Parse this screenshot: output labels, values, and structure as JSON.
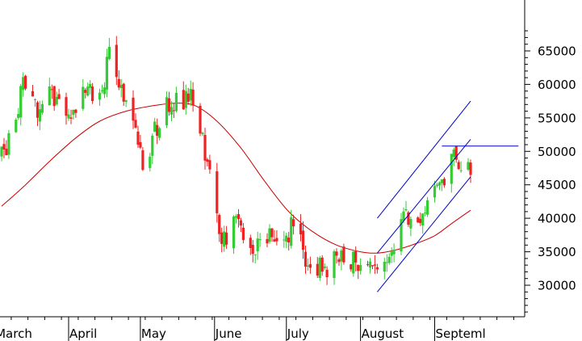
{
  "chart_data": {
    "type": "candlestick",
    "x_axis": {
      "type": "date",
      "range": [
        "2008-03-04",
        "2008-09-16"
      ],
      "tick_labels": [
        {
          "label": "March",
          "date": "2008-03-01"
        },
        {
          "label": "April",
          "date": "2008-04-01"
        },
        {
          "label": "May",
          "date": "2008-05-01"
        },
        {
          "label": "June",
          "date": "2008-06-01"
        },
        {
          "label": "July",
          "date": "2008-07-01"
        },
        {
          "label": "August",
          "date": "2008-08-01"
        },
        {
          "label": "Septeml",
          "date": "2008-09-01"
        }
      ]
    },
    "y_axis": {
      "position": "right",
      "range": [
        26000,
        68000
      ],
      "ticks": [
        30000,
        35000,
        40000,
        45000,
        50000,
        55000,
        60000,
        65000
      ]
    },
    "colors": {
      "up": "#33cc33",
      "down": "#ee2222",
      "moving_average": "#cc0000",
      "trend_lines": "#0000cc",
      "axis": "#000000"
    },
    "price_path": [
      {
        "date": "2008-03-04",
        "value": 49000
      },
      {
        "date": "2008-03-10",
        "value": 55000
      },
      {
        "date": "2008-03-14",
        "value": 61000
      },
      {
        "date": "2008-03-19",
        "value": 55000
      },
      {
        "date": "2008-03-24",
        "value": 59000
      },
      {
        "date": "2008-03-31",
        "value": 54000
      },
      {
        "date": "2008-04-07",
        "value": 59500
      },
      {
        "date": "2008-04-14",
        "value": 58000
      },
      {
        "date": "2008-04-18",
        "value": 64000
      },
      {
        "date": "2008-04-25",
        "value": 58000
      },
      {
        "date": "2008-05-02",
        "value": 48000
      },
      {
        "date": "2008-05-09",
        "value": 55000
      },
      {
        "date": "2008-05-16",
        "value": 58000
      },
      {
        "date": "2008-05-23",
        "value": 57500
      },
      {
        "date": "2008-05-27",
        "value": 51000
      },
      {
        "date": "2008-05-30",
        "value": 46000
      },
      {
        "date": "2008-06-04",
        "value": 37000
      },
      {
        "date": "2008-06-10",
        "value": 39000
      },
      {
        "date": "2008-06-16",
        "value": 35500
      },
      {
        "date": "2008-06-23",
        "value": 38000
      },
      {
        "date": "2008-06-30",
        "value": 35000
      },
      {
        "date": "2008-07-04",
        "value": 40000
      },
      {
        "date": "2008-07-10",
        "value": 33500
      },
      {
        "date": "2008-07-17",
        "value": 32500
      },
      {
        "date": "2008-07-24",
        "value": 34000
      },
      {
        "date": "2008-07-31",
        "value": 33500
      },
      {
        "date": "2008-08-06",
        "value": 32000
      },
      {
        "date": "2008-08-08",
        "value": 30500
      },
      {
        "date": "2008-08-13",
        "value": 33500
      },
      {
        "date": "2008-08-18",
        "value": 39500
      },
      {
        "date": "2008-08-22",
        "value": 41000
      },
      {
        "date": "2008-08-27",
        "value": 39000
      },
      {
        "date": "2008-09-01",
        "value": 45000
      },
      {
        "date": "2008-09-05",
        "value": 46000
      },
      {
        "date": "2008-09-09",
        "value": 49000
      },
      {
        "date": "2008-09-12",
        "value": 48500
      },
      {
        "date": "2008-09-16",
        "value": 48000
      }
    ],
    "moving_average": [
      {
        "date": "2008-03-04",
        "value": 41800
      },
      {
        "date": "2008-03-14",
        "value": 45000
      },
      {
        "date": "2008-03-24",
        "value": 48500
      },
      {
        "date": "2008-04-04",
        "value": 52000
      },
      {
        "date": "2008-04-14",
        "value": 54500
      },
      {
        "date": "2008-04-25",
        "value": 56000
      },
      {
        "date": "2008-05-06",
        "value": 56800
      },
      {
        "date": "2008-05-16",
        "value": 57200
      },
      {
        "date": "2008-05-24",
        "value": 56800
      },
      {
        "date": "2008-06-02",
        "value": 54500
      },
      {
        "date": "2008-06-12",
        "value": 50500
      },
      {
        "date": "2008-06-22",
        "value": 45500
      },
      {
        "date": "2008-07-02",
        "value": 41000
      },
      {
        "date": "2008-07-12",
        "value": 38000
      },
      {
        "date": "2008-07-22",
        "value": 36000
      },
      {
        "date": "2008-08-01",
        "value": 35000
      },
      {
        "date": "2008-08-08",
        "value": 34800
      },
      {
        "date": "2008-08-16",
        "value": 35300
      },
      {
        "date": "2008-08-24",
        "value": 36200
      },
      {
        "date": "2008-09-01",
        "value": 37400
      },
      {
        "date": "2008-09-08",
        "value": 39200
      },
      {
        "date": "2008-09-16",
        "value": 41200
      }
    ],
    "trend_lines": [
      {
        "start": {
          "date": "2008-08-08",
          "value": 40000
        },
        "end": {
          "date": "2008-09-16",
          "value": 57500
        }
      },
      {
        "start": {
          "date": "2008-08-08",
          "value": 34800
        },
        "end": {
          "date": "2008-09-16",
          "value": 51800
        }
      },
      {
        "start": {
          "date": "2008-08-08",
          "value": 29000
        },
        "end": {
          "date": "2008-09-16",
          "value": 46200
        }
      },
      {
        "start": {
          "date": "2008-09-04",
          "value": 50800
        },
        "end": {
          "date": "2008-10-06",
          "value": 50800
        }
      }
    ]
  }
}
